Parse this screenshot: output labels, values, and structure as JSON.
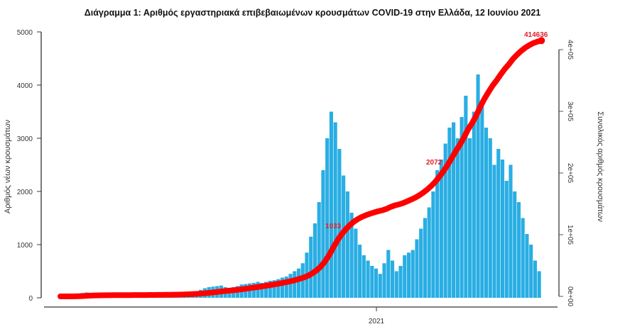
{
  "chart_data": {
    "type": "bar+line",
    "title": "Διάγραμμα 1: Αριθμός εργαστηριακά επιβεβαιωμένων κρουσμάτων COVID-19 στην Ελλάδα, 12 Ιουνίου 2021",
    "ylabel_left": "Αριθμός νέων κρουσμάτων",
    "ylabel_right": "Συνολικός αριθμός κρουσμάτων",
    "ylim_left": [
      0,
      5000
    ],
    "yticks_left": [
      "0",
      "1000",
      "2000",
      "3000",
      "4000",
      "5000"
    ],
    "ylim_right": [
      0,
      400000
    ],
    "yticks_right": [
      "0e+00",
      "1e+05",
      "2e+05",
      "3e+05",
      "4e+05"
    ],
    "xticks": [
      "2021"
    ],
    "x_start": "2020-02-26",
    "x_step_days": 4,
    "colors": {
      "bars": "#29aee3",
      "cumulative": "#ff0000",
      "annotation": "#e0202a"
    },
    "series": [
      {
        "type": "bar",
        "values": [
          1,
          4,
          15,
          40,
          70,
          90,
          100,
          80,
          60,
          40,
          30,
          20,
          15,
          12,
          10,
          8,
          6,
          8,
          10,
          12,
          10,
          15,
          15,
          20,
          20,
          25,
          30,
          35,
          40,
          50,
          60,
          80,
          100,
          120,
          150,
          180,
          200,
          210,
          220,
          230,
          200,
          180,
          200,
          220,
          250,
          260,
          270,
          280,
          300,
          280,
          300,
          320,
          330,
          350,
          380,
          400,
          450,
          500,
          550,
          650,
          850,
          1150,
          1400,
          1800,
          2400,
          3000,
          3500,
          3300,
          2800,
          2300,
          2000,
          1600,
          1300,
          1000,
          800,
          700,
          600,
          550,
          450,
          650,
          900,
          700,
          500,
          600,
          800,
          850,
          900,
          1100,
          1300,
          1500,
          1700,
          2000,
          2400,
          2600,
          2900,
          3200,
          3300,
          3000,
          3400,
          3800,
          3000,
          3500,
          4200,
          3700,
          3200,
          3000,
          2500,
          2800,
          2600,
          2200,
          2500,
          2000,
          1800,
          1500,
          1200,
          1000,
          700,
          500
        ]
      },
      {
        "type": "line",
        "cumulative_final": 414636
      }
    ],
    "annotations": [
      "1033",
      "2072",
      "414636"
    ]
  }
}
